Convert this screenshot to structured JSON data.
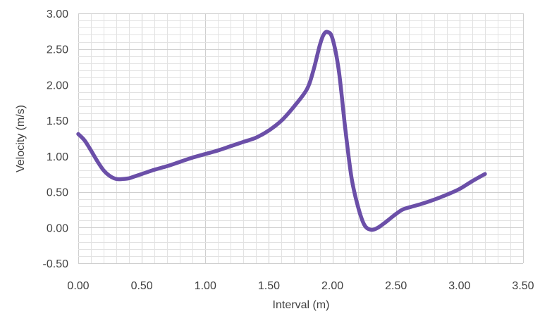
{
  "chart_data": {
    "type": "line",
    "title": "",
    "xlabel": "Interval (m)",
    "ylabel": "Velocity (m/s)",
    "xlim": [
      0,
      3.5
    ],
    "ylim": [
      -0.5,
      3.0
    ],
    "x_ticks": [
      "0.00",
      "0.50",
      "1.00",
      "1.50",
      "2.00",
      "2.50",
      "3.00",
      "3.50"
    ],
    "y_ticks": [
      "3.00",
      "2.50",
      "2.00",
      "1.50",
      "1.00",
      "0.50",
      "0.00",
      "-0.50"
    ],
    "grid": true,
    "legend": "none",
    "line_color": "#6b4fa8",
    "series": [
      {
        "x": [
          0.0,
          0.05,
          0.1,
          0.15,
          0.2,
          0.25,
          0.3,
          0.35,
          0.4,
          0.45,
          0.5,
          0.6,
          0.7,
          0.8,
          0.9,
          1.0,
          1.1,
          1.2,
          1.3,
          1.4,
          1.5,
          1.6,
          1.7,
          1.8,
          1.85,
          1.9,
          1.93,
          1.96,
          2.0,
          2.05,
          2.1,
          2.15,
          2.2,
          2.25,
          2.3,
          2.35,
          2.4,
          2.45,
          2.5,
          2.55,
          2.6,
          2.7,
          2.8,
          2.9,
          3.0,
          3.1,
          3.2
        ],
        "values": [
          1.31,
          1.22,
          1.08,
          0.93,
          0.8,
          0.72,
          0.68,
          0.68,
          0.69,
          0.72,
          0.75,
          0.81,
          0.86,
          0.92,
          0.98,
          1.03,
          1.08,
          1.14,
          1.2,
          1.26,
          1.36,
          1.5,
          1.7,
          1.94,
          2.2,
          2.55,
          2.7,
          2.74,
          2.65,
          2.2,
          1.4,
          0.7,
          0.3,
          0.04,
          -0.03,
          -0.01,
          0.05,
          0.12,
          0.19,
          0.25,
          0.28,
          0.33,
          0.39,
          0.46,
          0.54,
          0.65,
          0.75
        ]
      }
    ]
  }
}
